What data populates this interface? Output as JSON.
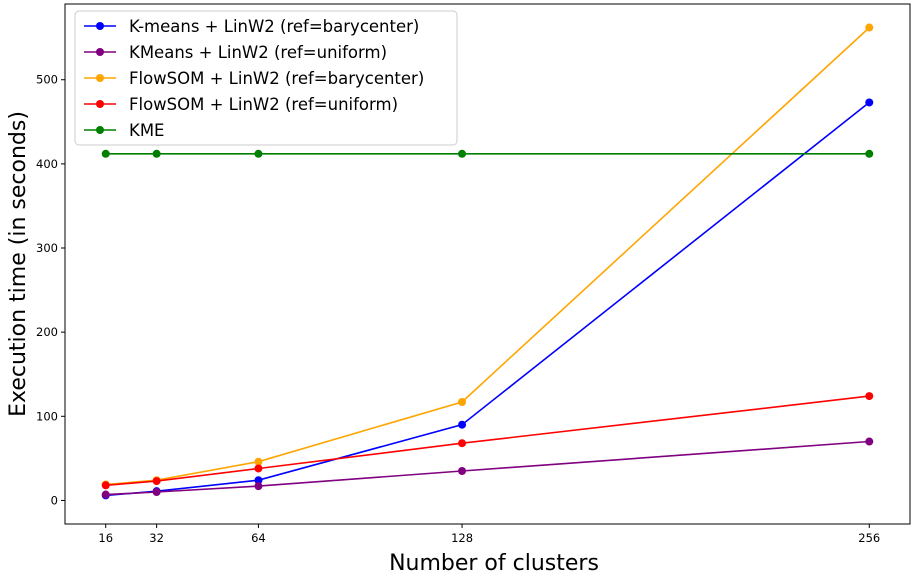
{
  "chart_data": {
    "type": "line",
    "title": "",
    "xlabel": "Number of clusters",
    "ylabel": "Execution time (in seconds)",
    "x": [
      16,
      32,
      64,
      128,
      256
    ],
    "xticks": [
      "16",
      "32",
      "64",
      "128",
      "256"
    ],
    "xlim": [
      3.2,
      268.8
    ],
    "ylim": [
      -28,
      590
    ],
    "yticks": [
      0,
      100,
      200,
      300,
      400,
      500
    ],
    "grid": false,
    "legend_position": "top-left",
    "series": [
      {
        "name": "K-means + LinW2 (ref=barycenter)",
        "color": "#0000ff",
        "values": [
          6,
          11,
          24,
          90,
          473
        ]
      },
      {
        "name": "KMeans + LinW2 (ref=uniform)",
        "color": "#800080",
        "values": [
          7,
          10,
          17,
          35,
          70
        ]
      },
      {
        "name": "FlowSOM + LinW2 (ref=barycenter)",
        "color": "#ffa500",
        "values": [
          19,
          24,
          46,
          117,
          562
        ]
      },
      {
        "name": "FlowSOM + LinW2 (ref=uniform)",
        "color": "#ff0000",
        "values": [
          18,
          23,
          38,
          68,
          124
        ]
      },
      {
        "name": "KME",
        "color": "#008000",
        "values": [
          412,
          412,
          412,
          412,
          412
        ]
      }
    ]
  }
}
